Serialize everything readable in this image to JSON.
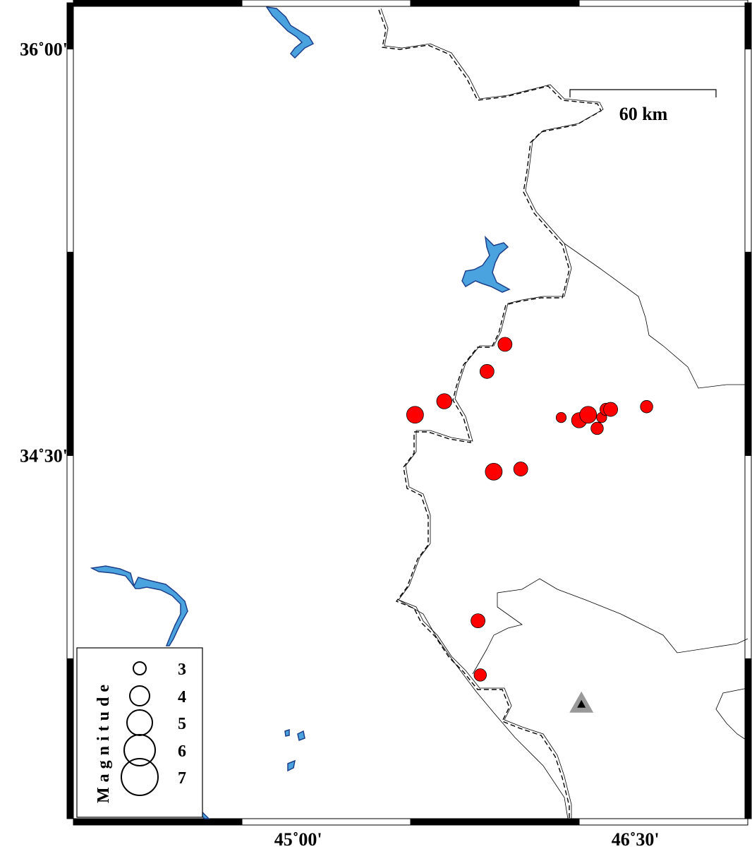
{
  "map": {
    "extent": {
      "lon_min": 44.0,
      "lon_max": 47.0,
      "lat_min": 33.16,
      "lat_max": 36.17
    },
    "x_ticks": [
      {
        "lon": 45.0,
        "label": "45˚00'"
      },
      {
        "lon": 46.5,
        "label": "46˚30'"
      }
    ],
    "y_ticks": [
      {
        "lat": 36.0,
        "label": "36˚00'"
      },
      {
        "lat": 34.5,
        "label": "34˚30'"
      }
    ],
    "scale_bar": {
      "label": "60 km"
    },
    "colors": {
      "event": "#ff0000",
      "water": "#4aa3df",
      "station": "#999999"
    },
    "events": [
      {
        "lon": 45.92,
        "lat": 34.91,
        "mag": 3.0
      },
      {
        "lon": 45.84,
        "lat": 34.81,
        "mag": 3.0
      },
      {
        "lon": 45.65,
        "lat": 34.7,
        "mag": 3.2
      },
      {
        "lon": 45.52,
        "lat": 34.65,
        "mag": 3.5
      },
      {
        "lon": 45.87,
        "lat": 34.44,
        "mag": 3.5
      },
      {
        "lon": 45.99,
        "lat": 34.45,
        "mag": 3.0
      },
      {
        "lon": 46.17,
        "lat": 34.64,
        "mag": 2.3
      },
      {
        "lon": 46.25,
        "lat": 34.63,
        "mag": 3.2
      },
      {
        "lon": 46.29,
        "lat": 34.65,
        "mag": 3.5
      },
      {
        "lon": 46.33,
        "lat": 34.6,
        "mag": 2.7
      },
      {
        "lon": 46.35,
        "lat": 34.64,
        "mag": 2.3
      },
      {
        "lon": 46.37,
        "lat": 34.67,
        "mag": 2.7
      },
      {
        "lon": 46.39,
        "lat": 34.67,
        "mag": 3.0
      },
      {
        "lon": 46.55,
        "lat": 34.68,
        "mag": 2.7
      },
      {
        "lon": 45.8,
        "lat": 33.89,
        "mag": 3.0
      },
      {
        "lon": 45.81,
        "lat": 33.69,
        "mag": 2.7
      }
    ],
    "station": {
      "lon": 46.26,
      "lat": 33.58,
      "icon": "triangle-icon"
    },
    "legend": {
      "title": "Magnitude",
      "items": [
        {
          "mag": 3,
          "label": "3"
        },
        {
          "mag": 4,
          "label": "4"
        },
        {
          "mag": 5,
          "label": "5"
        },
        {
          "mag": 6,
          "label": "6"
        },
        {
          "mag": 7,
          "label": "7"
        }
      ]
    }
  }
}
